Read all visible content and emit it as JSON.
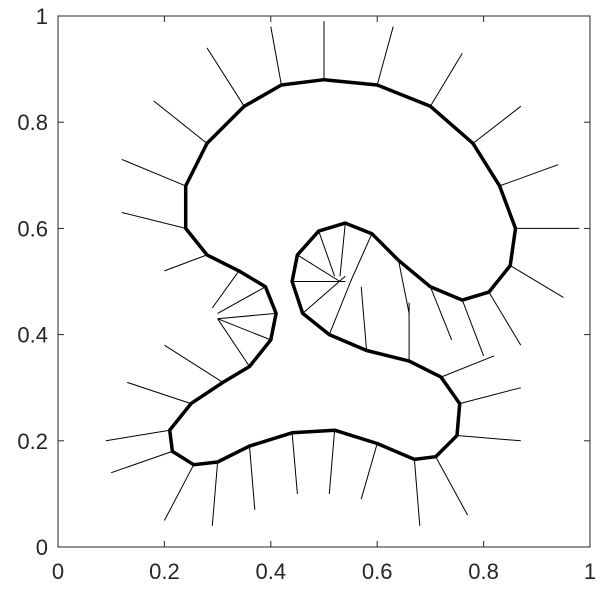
{
  "chart_data": {
    "type": "line",
    "xlim": [
      0,
      1
    ],
    "ylim": [
      0,
      1
    ],
    "xticks": [
      0,
      0.2,
      0.4,
      0.6,
      0.8,
      1
    ],
    "yticks": [
      0,
      0.2,
      0.4,
      0.6,
      0.8,
      1
    ],
    "series": [
      {
        "color": "#000000",
        "width": 1,
        "x": [
          0.5,
          0.5,
          null,
          0.6,
          0.63,
          null,
          0.7,
          0.76,
          null,
          0.78,
          0.87,
          null,
          0.83,
          0.94,
          null,
          0.86,
          0.98,
          null,
          0.85,
          0.95,
          null,
          0.81,
          0.87,
          null,
          0.76,
          0.8,
          null,
          0.7,
          0.74,
          null,
          0.64,
          0.66,
          null,
          0.59,
          0.55,
          null,
          0.54,
          0.53,
          null,
          0.49,
          0.52,
          null,
          0.45,
          0.53,
          null,
          0.44,
          0.54,
          null,
          0.46,
          0.54,
          null,
          0.51,
          0.55,
          null,
          0.58,
          0.57,
          null,
          0.66,
          0.66,
          null,
          0.72,
          0.82,
          null,
          0.755,
          0.87,
          null,
          0.75,
          0.87,
          null,
          0.71,
          0.77,
          null,
          0.67,
          0.68,
          null,
          0.6,
          0.57,
          null,
          0.52,
          0.51,
          null,
          0.44,
          0.45,
          null,
          0.36,
          0.37,
          null,
          0.3,
          0.29,
          null,
          0.255,
          0.2,
          null,
          0.215,
          0.1,
          null,
          0.21,
          0.09,
          null,
          0.25,
          0.13,
          null,
          0.31,
          0.2,
          null,
          0.36,
          0.3,
          null,
          0.4,
          0.3,
          null,
          0.41,
          0.3,
          null,
          0.39,
          0.3,
          null,
          0.34,
          0.29,
          null,
          0.28,
          0.2,
          null,
          0.24,
          0.12,
          null,
          0.24,
          0.12,
          null,
          0.28,
          0.18,
          null,
          0.35,
          0.28,
          null,
          0.42,
          0.4
        ],
        "values": [
          0.88,
          0.99,
          null,
          0.87,
          0.98,
          null,
          0.83,
          0.93,
          null,
          0.76,
          0.83,
          null,
          0.68,
          0.72,
          null,
          0.6,
          0.6,
          null,
          0.53,
          0.47,
          null,
          0.48,
          0.38,
          null,
          0.465,
          0.36,
          null,
          0.49,
          0.39,
          null,
          0.54,
          0.44,
          null,
          0.59,
          0.5,
          null,
          0.61,
          0.51,
          null,
          0.595,
          0.51,
          null,
          0.55,
          0.5,
          null,
          0.5,
          0.5,
          null,
          0.44,
          0.51,
          null,
          0.4,
          0.5,
          null,
          0.37,
          0.49,
          null,
          0.35,
          0.46,
          null,
          0.32,
          0.36,
          null,
          0.27,
          0.3,
          null,
          0.21,
          0.2,
          null,
          0.17,
          0.06,
          null,
          0.165,
          0.04,
          null,
          0.195,
          0.09,
          null,
          0.22,
          0.1,
          null,
          0.215,
          0.1,
          null,
          0.19,
          0.07,
          null,
          0.16,
          0.04,
          null,
          0.155,
          0.05,
          null,
          0.18,
          0.14,
          null,
          0.22,
          0.2,
          null,
          0.27,
          0.31,
          null,
          0.31,
          0.38,
          null,
          0.34,
          0.43,
          null,
          0.39,
          0.43,
          null,
          0.44,
          0.43,
          null,
          0.49,
          0.44,
          null,
          0.52,
          0.45,
          null,
          0.55,
          0.52,
          null,
          0.6,
          0.63,
          null,
          0.68,
          0.73,
          null,
          0.76,
          0.84,
          null,
          0.83,
          0.94,
          null,
          0.87,
          0.98
        ]
      },
      {
        "color": "#000000",
        "width": 3.5,
        "x": [
          0.5,
          0.6,
          0.7,
          0.78,
          0.83,
          0.86,
          0.85,
          0.81,
          0.76,
          0.7,
          0.64,
          0.59,
          0.54,
          0.49,
          0.45,
          0.44,
          0.46,
          0.51,
          0.58,
          0.66,
          0.72,
          0.755,
          0.75,
          0.71,
          0.67,
          0.6,
          0.52,
          0.44,
          0.36,
          0.3,
          0.255,
          0.215,
          0.21,
          0.25,
          0.31,
          0.36,
          0.4,
          0.41,
          0.39,
          0.34,
          0.28,
          0.24,
          0.24,
          0.28,
          0.35,
          0.42,
          0.5
        ],
        "values": [
          0.88,
          0.87,
          0.83,
          0.76,
          0.68,
          0.6,
          0.53,
          0.48,
          0.465,
          0.49,
          0.54,
          0.59,
          0.61,
          0.595,
          0.55,
          0.5,
          0.44,
          0.4,
          0.37,
          0.35,
          0.32,
          0.27,
          0.21,
          0.17,
          0.165,
          0.195,
          0.22,
          0.215,
          0.19,
          0.16,
          0.155,
          0.18,
          0.22,
          0.27,
          0.31,
          0.34,
          0.39,
          0.44,
          0.49,
          0.52,
          0.55,
          0.6,
          0.68,
          0.76,
          0.83,
          0.87,
          0.88
        ]
      }
    ]
  }
}
